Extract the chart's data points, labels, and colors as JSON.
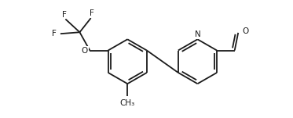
{
  "bg_color": "#ffffff",
  "line_color": "#1a1a1a",
  "line_width": 1.3,
  "font_size": 7.5,
  "fig_width": 3.73,
  "fig_height": 1.51,
  "dpi": 100,
  "xlim": [
    -0.5,
    11.0
  ],
  "ylim": [
    -0.3,
    4.3
  ]
}
